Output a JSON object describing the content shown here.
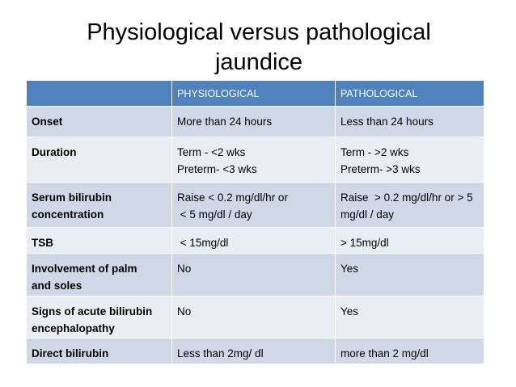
{
  "title": [
    "Physiological versus pathological",
    "jaundice"
  ],
  "table": {
    "rows": [
      [
        [
          ""
        ],
        [
          "PHYSIOLOGICAL"
        ],
        [
          "PATHOLOGICAL"
        ]
      ],
      [
        [
          "Onset"
        ],
        [
          "More than 24 hours"
        ],
        [
          "Less than 24 hours"
        ]
      ],
      [
        [
          "Duration"
        ],
        [
          "Term - <2 wks",
          "Preterm- <3 wks"
        ],
        [
          "Term - >2 wks",
          "Preterm- >3 wks"
        ]
      ],
      [
        [
          "Serum bilirubin",
          "concentration"
        ],
        [
          "Raise < 0.2 mg/dl/hr or",
          " < 5 mg/dl / day"
        ],
        [
          "Raise  > 0.2 mg/dl/hr or > 5",
          "mg/dl / day"
        ]
      ],
      [
        [
          "TSB"
        ],
        [
          " < 15mg/dl"
        ],
        [
          "> 15mg/dl"
        ]
      ],
      [
        [
          "Involvement of palm",
          "and soles"
        ],
        [
          "No"
        ],
        [
          "Yes"
        ]
      ],
      [
        [
          "Signs of acute bilirubin",
          "encephalopathy"
        ],
        [
          "No"
        ],
        [
          "Yes"
        ]
      ],
      [
        [
          "Direct bilirubin"
        ],
        [
          "Less than 2mg/ dl"
        ],
        [
          "more than 2 mg/dl"
        ]
      ]
    ]
  }
}
